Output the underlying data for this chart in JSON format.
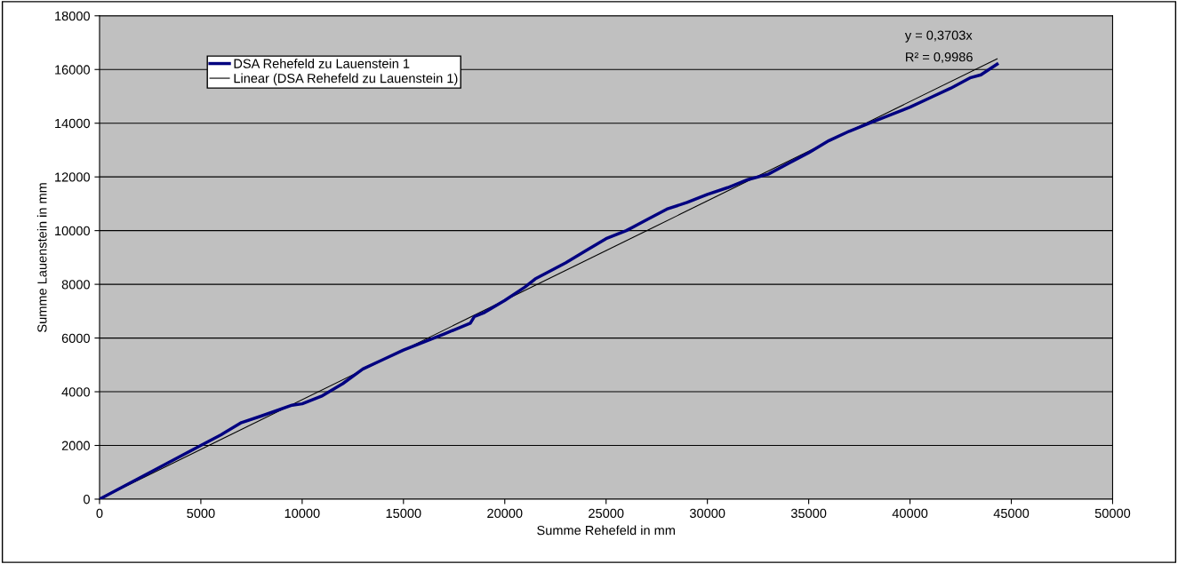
{
  "chart_data": {
    "type": "line",
    "xlabel": "Summe Rehefeld in mm",
    "ylabel": "Summe Lauenstein in mm",
    "xlim": [
      0,
      50000
    ],
    "xticks": [
      0,
      5000,
      10000,
      15000,
      20000,
      25000,
      30000,
      35000,
      40000,
      45000,
      50000
    ],
    "ylim": [
      0,
      18000
    ],
    "yticks": [
      0,
      2000,
      4000,
      6000,
      8000,
      10000,
      12000,
      14000,
      16000,
      18000
    ],
    "grid": "y",
    "legend": "top left",
    "marker": "none",
    "line_style": "solid",
    "annotations": [
      "y = 0,3703x",
      "R² = 0,9986"
    ],
    "series": [
      {
        "name": "DSA Rehefeld zu Lauenstein 1",
        "color": "#000080",
        "x": [
          0,
          2500,
          5000,
          6000,
          7000,
          8000,
          9500,
          10000,
          11000,
          12000,
          13000,
          14000,
          15000,
          16000,
          17000,
          18300,
          18500,
          19000,
          20000,
          21000,
          21500,
          22000,
          23000,
          24000,
          25000,
          26000,
          27000,
          28000,
          29000,
          30000,
          31000,
          32000,
          33000,
          34000,
          35000,
          36000,
          37000,
          38000,
          39000,
          40000,
          41000,
          42000,
          43000,
          43500,
          44300
        ],
        "values": [
          0,
          1000,
          2000,
          2400,
          2850,
          3100,
          3500,
          3550,
          3850,
          4300,
          4850,
          5200,
          5550,
          5850,
          6150,
          6550,
          6800,
          6950,
          7400,
          7900,
          8200,
          8400,
          8800,
          9250,
          9700,
          10000,
          10400,
          10800,
          11050,
          11350,
          11600,
          11900,
          12100,
          12500,
          12900,
          13350,
          13700,
          14000,
          14300,
          14600,
          14950,
          15300,
          15700,
          15800,
          16200
        ]
      },
      {
        "name": "Linear (DSA Rehefeld zu Lauenstein 1)",
        "color": "#000000",
        "type": "line",
        "x": [
          0,
          44300
        ],
        "values": [
          0,
          16400
        ]
      }
    ]
  }
}
